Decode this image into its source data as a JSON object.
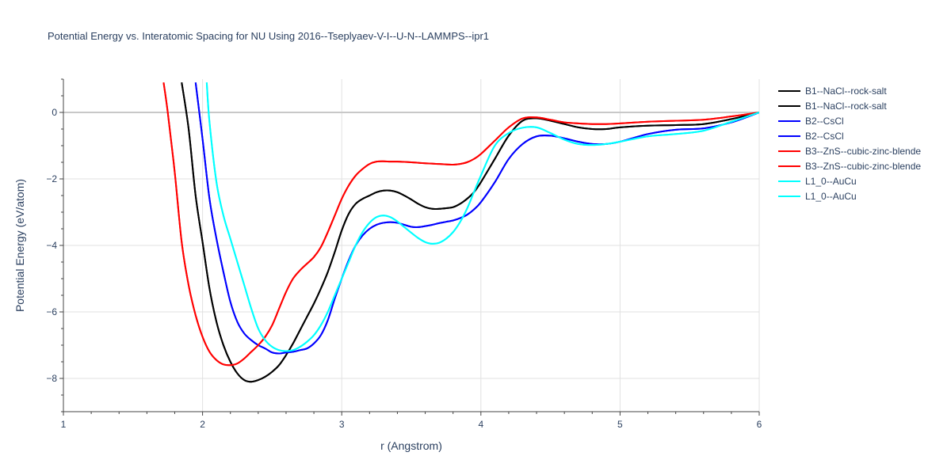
{
  "chart_data": {
    "type": "line",
    "title": "Potential Energy vs. Interatomic Spacing for NU Using 2016--Tseplyaev-V-I--U-N--LAMMPS--ipr1",
    "xlabel": "r (Angstrom)",
    "ylabel": "Potential Energy (eV/atom)",
    "xlim": [
      1,
      6
    ],
    "ylim": [
      -9,
      1
    ],
    "xticks": [
      1,
      2,
      3,
      4,
      5,
      6
    ],
    "yticks": [
      0,
      -2,
      -4,
      -6,
      -8
    ],
    "grid": true,
    "legend_position": "right",
    "series": [
      {
        "name": "B1--NaCl--rock-salt",
        "color": "#000000",
        "x": [
          1.85,
          1.9,
          1.95,
          2.0,
          2.05,
          2.1,
          2.15,
          2.2,
          2.25,
          2.3,
          2.35,
          2.4,
          2.45,
          2.5,
          2.55,
          2.6,
          2.65,
          2.7,
          2.75,
          2.8,
          2.85,
          2.9,
          2.95,
          3.0,
          3.05,
          3.1,
          3.15,
          3.2,
          3.25,
          3.3,
          3.35,
          3.4,
          3.45,
          3.5,
          3.55,
          3.6,
          3.65,
          3.7,
          3.75,
          3.8,
          3.85,
          3.9,
          3.95,
          4.0,
          4.1,
          4.2,
          4.3,
          4.4,
          4.5,
          4.6,
          4.7,
          4.8,
          4.9,
          5.0,
          5.2,
          5.4,
          5.6,
          5.8,
          6.0
        ],
        "values": [
          0.9,
          -0.5,
          -2.5,
          -3.9,
          -5.3,
          -6.3,
          -7.0,
          -7.5,
          -7.85,
          -8.05,
          -8.1,
          -8.05,
          -7.95,
          -7.8,
          -7.6,
          -7.3,
          -6.95,
          -6.55,
          -6.15,
          -5.75,
          -5.3,
          -4.8,
          -4.2,
          -3.55,
          -3.05,
          -2.75,
          -2.6,
          -2.5,
          -2.4,
          -2.35,
          -2.35,
          -2.4,
          -2.5,
          -2.62,
          -2.75,
          -2.85,
          -2.9,
          -2.9,
          -2.88,
          -2.85,
          -2.75,
          -2.6,
          -2.4,
          -2.1,
          -1.4,
          -0.7,
          -0.25,
          -0.18,
          -0.25,
          -0.35,
          -0.45,
          -0.5,
          -0.5,
          -0.45,
          -0.4,
          -0.38,
          -0.35,
          -0.2,
          0.0
        ]
      },
      {
        "name": "B1--NaCl--rock-salt",
        "color": "#000000",
        "x": [
          1.85,
          1.9,
          1.95,
          2.0,
          2.05,
          2.1,
          2.15,
          2.2,
          2.25,
          2.3,
          2.35,
          2.4,
          2.45,
          2.5,
          2.55,
          2.6,
          2.65,
          2.7,
          2.75,
          2.8,
          2.85,
          2.9,
          2.95,
          3.0,
          3.05,
          3.1,
          3.15,
          3.2,
          3.25,
          3.3,
          3.35,
          3.4,
          3.45,
          3.5,
          3.55,
          3.6,
          3.65,
          3.7,
          3.75,
          3.8,
          3.85,
          3.9,
          3.95,
          4.0,
          4.1,
          4.2,
          4.3,
          4.4,
          4.5,
          4.6,
          4.7,
          4.8,
          4.9,
          5.0,
          5.2,
          5.4,
          5.6,
          5.8,
          6.0
        ],
        "values": [
          0.9,
          -0.5,
          -2.5,
          -3.9,
          -5.3,
          -6.3,
          -7.0,
          -7.5,
          -7.85,
          -8.05,
          -8.1,
          -8.05,
          -7.95,
          -7.8,
          -7.6,
          -7.3,
          -6.95,
          -6.55,
          -6.15,
          -5.75,
          -5.3,
          -4.8,
          -4.2,
          -3.55,
          -3.05,
          -2.75,
          -2.6,
          -2.5,
          -2.4,
          -2.35,
          -2.35,
          -2.4,
          -2.5,
          -2.62,
          -2.75,
          -2.85,
          -2.9,
          -2.9,
          -2.88,
          -2.85,
          -2.75,
          -2.6,
          -2.4,
          -2.1,
          -1.4,
          -0.7,
          -0.25,
          -0.18,
          -0.25,
          -0.35,
          -0.45,
          -0.5,
          -0.5,
          -0.45,
          -0.4,
          -0.38,
          -0.35,
          -0.2,
          0.0
        ]
      },
      {
        "name": "B2--CsCl",
        "color": "#0000ff",
        "x": [
          1.95,
          2.0,
          2.05,
          2.1,
          2.15,
          2.2,
          2.25,
          2.3,
          2.35,
          2.4,
          2.45,
          2.5,
          2.55,
          2.6,
          2.65,
          2.7,
          2.75,
          2.8,
          2.85,
          2.9,
          2.95,
          3.0,
          3.05,
          3.1,
          3.15,
          3.2,
          3.25,
          3.3,
          3.35,
          3.4,
          3.45,
          3.5,
          3.55,
          3.6,
          3.65,
          3.7,
          3.75,
          3.8,
          3.85,
          3.9,
          3.95,
          4.0,
          4.1,
          4.2,
          4.3,
          4.4,
          4.5,
          4.6,
          4.7,
          4.8,
          4.9,
          5.0,
          5.2,
          5.4,
          5.6,
          5.8,
          6.0
        ],
        "values": [
          0.9,
          -0.8,
          -2.6,
          -3.8,
          -4.8,
          -5.7,
          -6.3,
          -6.65,
          -6.85,
          -7.0,
          -7.1,
          -7.22,
          -7.25,
          -7.22,
          -7.2,
          -7.15,
          -7.1,
          -6.95,
          -6.7,
          -6.25,
          -5.6,
          -5.0,
          -4.45,
          -4.0,
          -3.7,
          -3.5,
          -3.38,
          -3.32,
          -3.3,
          -3.32,
          -3.38,
          -3.44,
          -3.45,
          -3.42,
          -3.38,
          -3.33,
          -3.29,
          -3.25,
          -3.18,
          -3.08,
          -2.92,
          -2.7,
          -2.1,
          -1.4,
          -0.95,
          -0.72,
          -0.7,
          -0.78,
          -0.88,
          -0.95,
          -0.95,
          -0.88,
          -0.65,
          -0.52,
          -0.48,
          -0.3,
          0.0
        ]
      },
      {
        "name": "B2--CsCl",
        "color": "#0000ff",
        "x": [
          1.95,
          2.0,
          2.05,
          2.1,
          2.15,
          2.2,
          2.25,
          2.3,
          2.35,
          2.4,
          2.45,
          2.5,
          2.55,
          2.6,
          2.65,
          2.7,
          2.75,
          2.8,
          2.85,
          2.9,
          2.95,
          3.0,
          3.05,
          3.1,
          3.15,
          3.2,
          3.25,
          3.3,
          3.35,
          3.4,
          3.45,
          3.5,
          3.55,
          3.6,
          3.65,
          3.7,
          3.75,
          3.8,
          3.85,
          3.9,
          3.95,
          4.0,
          4.1,
          4.2,
          4.3,
          4.4,
          4.5,
          4.6,
          4.7,
          4.8,
          4.9,
          5.0,
          5.2,
          5.4,
          5.6,
          5.8,
          6.0
        ],
        "values": [
          0.9,
          -0.8,
          -2.6,
          -3.8,
          -4.8,
          -5.7,
          -6.3,
          -6.65,
          -6.85,
          -7.0,
          -7.1,
          -7.22,
          -7.25,
          -7.22,
          -7.2,
          -7.15,
          -7.1,
          -6.95,
          -6.7,
          -6.25,
          -5.6,
          -5.0,
          -4.45,
          -4.0,
          -3.7,
          -3.5,
          -3.38,
          -3.32,
          -3.3,
          -3.32,
          -3.38,
          -3.44,
          -3.45,
          -3.42,
          -3.38,
          -3.33,
          -3.29,
          -3.25,
          -3.18,
          -3.08,
          -2.92,
          -2.7,
          -2.1,
          -1.4,
          -0.95,
          -0.72,
          -0.7,
          -0.78,
          -0.88,
          -0.95,
          -0.95,
          -0.88,
          -0.65,
          -0.52,
          -0.48,
          -0.3,
          0.0
        ]
      },
      {
        "name": "B3--ZnS--cubic-zinc-blende",
        "color": "#ff0000",
        "x": [
          1.72,
          1.75,
          1.8,
          1.85,
          1.9,
          1.95,
          2.0,
          2.05,
          2.1,
          2.15,
          2.2,
          2.25,
          2.3,
          2.35,
          2.4,
          2.45,
          2.5,
          2.55,
          2.6,
          2.65,
          2.7,
          2.75,
          2.8,
          2.85,
          2.9,
          2.95,
          3.0,
          3.05,
          3.1,
          3.15,
          3.2,
          3.25,
          3.3,
          3.35,
          3.4,
          3.5,
          3.6,
          3.7,
          3.8,
          3.85,
          3.9,
          3.95,
          4.0,
          4.1,
          4.2,
          4.3,
          4.4,
          4.5,
          4.6,
          4.7,
          4.8,
          4.9,
          5.0,
          5.2,
          5.4,
          5.6,
          5.8,
          6.0
        ],
        "values": [
          0.9,
          0.0,
          -1.8,
          -3.9,
          -5.2,
          -6.1,
          -6.75,
          -7.2,
          -7.45,
          -7.58,
          -7.6,
          -7.55,
          -7.4,
          -7.2,
          -7.0,
          -6.75,
          -6.4,
          -5.9,
          -5.4,
          -5.0,
          -4.75,
          -4.55,
          -4.35,
          -4.05,
          -3.6,
          -3.1,
          -2.6,
          -2.2,
          -1.9,
          -1.7,
          -1.55,
          -1.48,
          -1.47,
          -1.48,
          -1.48,
          -1.5,
          -1.53,
          -1.55,
          -1.57,
          -1.55,
          -1.5,
          -1.4,
          -1.25,
          -0.85,
          -0.45,
          -0.18,
          -0.15,
          -0.22,
          -0.3,
          -0.33,
          -0.35,
          -0.35,
          -0.33,
          -0.28,
          -0.25,
          -0.22,
          -0.12,
          0.0
        ]
      },
      {
        "name": "B3--ZnS--cubic-zinc-blende",
        "color": "#ff0000",
        "x": [
          1.72,
          1.75,
          1.8,
          1.85,
          1.9,
          1.95,
          2.0,
          2.05,
          2.1,
          2.15,
          2.2,
          2.25,
          2.3,
          2.35,
          2.4,
          2.45,
          2.5,
          2.55,
          2.6,
          2.65,
          2.7,
          2.75,
          2.8,
          2.85,
          2.9,
          2.95,
          3.0,
          3.05,
          3.1,
          3.15,
          3.2,
          3.25,
          3.3,
          3.35,
          3.4,
          3.5,
          3.6,
          3.7,
          3.8,
          3.85,
          3.9,
          3.95,
          4.0,
          4.1,
          4.2,
          4.3,
          4.4,
          4.5,
          4.6,
          4.7,
          4.8,
          4.9,
          5.0,
          5.2,
          5.4,
          5.6,
          5.8,
          6.0
        ],
        "values": [
          0.9,
          0.0,
          -1.8,
          -3.9,
          -5.2,
          -6.1,
          -6.75,
          -7.2,
          -7.45,
          -7.58,
          -7.6,
          -7.55,
          -7.4,
          -7.2,
          -7.0,
          -6.75,
          -6.4,
          -5.9,
          -5.4,
          -5.0,
          -4.75,
          -4.55,
          -4.35,
          -4.05,
          -3.6,
          -3.1,
          -2.6,
          -2.2,
          -1.9,
          -1.7,
          -1.55,
          -1.48,
          -1.47,
          -1.48,
          -1.48,
          -1.5,
          -1.53,
          -1.55,
          -1.57,
          -1.55,
          -1.5,
          -1.4,
          -1.25,
          -0.85,
          -0.45,
          -0.18,
          -0.15,
          -0.22,
          -0.3,
          -0.33,
          -0.35,
          -0.35,
          -0.33,
          -0.28,
          -0.25,
          -0.22,
          -0.12,
          0.0
        ]
      },
      {
        "name": "L1_0--AuCu",
        "color": "#00ffff",
        "x": [
          2.03,
          2.05,
          2.1,
          2.15,
          2.2,
          2.25,
          2.3,
          2.35,
          2.4,
          2.45,
          2.5,
          2.55,
          2.6,
          2.65,
          2.7,
          2.75,
          2.8,
          2.85,
          2.9,
          2.95,
          3.0,
          3.05,
          3.1,
          3.15,
          3.2,
          3.25,
          3.3,
          3.35,
          3.4,
          3.45,
          3.5,
          3.55,
          3.6,
          3.65,
          3.7,
          3.75,
          3.8,
          3.85,
          3.9,
          3.95,
          4.0,
          4.1,
          4.2,
          4.3,
          4.4,
          4.5,
          4.6,
          4.7,
          4.8,
          4.9,
          5.0,
          5.2,
          5.4,
          5.6,
          5.8,
          6.0
        ],
        "values": [
          0.9,
          -0.3,
          -2.1,
          -3.1,
          -3.8,
          -4.5,
          -5.2,
          -5.9,
          -6.5,
          -6.85,
          -7.05,
          -7.15,
          -7.18,
          -7.15,
          -7.05,
          -6.9,
          -6.7,
          -6.4,
          -6.0,
          -5.5,
          -5.0,
          -4.5,
          -4.0,
          -3.6,
          -3.32,
          -3.15,
          -3.1,
          -3.15,
          -3.28,
          -3.45,
          -3.62,
          -3.78,
          -3.9,
          -3.95,
          -3.92,
          -3.8,
          -3.6,
          -3.3,
          -2.9,
          -2.4,
          -1.9,
          -1.0,
          -0.62,
          -0.46,
          -0.45,
          -0.62,
          -0.82,
          -0.95,
          -0.98,
          -0.95,
          -0.88,
          -0.72,
          -0.65,
          -0.55,
          -0.28,
          0.0
        ]
      },
      {
        "name": "L1_0--AuCu",
        "color": "#00ffff",
        "x": [
          2.03,
          2.05,
          2.1,
          2.15,
          2.2,
          2.25,
          2.3,
          2.35,
          2.4,
          2.45,
          2.5,
          2.55,
          2.6,
          2.65,
          2.7,
          2.75,
          2.8,
          2.85,
          2.9,
          2.95,
          3.0,
          3.05,
          3.1,
          3.15,
          3.2,
          3.25,
          3.3,
          3.35,
          3.4,
          3.45,
          3.5,
          3.55,
          3.6,
          3.65,
          3.7,
          3.75,
          3.8,
          3.85,
          3.9,
          3.95,
          4.0,
          4.1,
          4.2,
          4.3,
          4.4,
          4.5,
          4.6,
          4.7,
          4.8,
          4.9,
          5.0,
          5.2,
          5.4,
          5.6,
          5.8,
          6.0
        ],
        "values": [
          0.9,
          -0.3,
          -2.1,
          -3.1,
          -3.8,
          -4.5,
          -5.2,
          -5.9,
          -6.5,
          -6.85,
          -7.05,
          -7.15,
          -7.18,
          -7.15,
          -7.05,
          -6.9,
          -6.7,
          -6.4,
          -6.0,
          -5.5,
          -5.0,
          -4.5,
          -4.0,
          -3.6,
          -3.32,
          -3.15,
          -3.1,
          -3.15,
          -3.28,
          -3.45,
          -3.62,
          -3.78,
          -3.9,
          -3.95,
          -3.92,
          -3.8,
          -3.6,
          -3.3,
          -2.9,
          -2.4,
          -1.9,
          -1.0,
          -0.62,
          -0.46,
          -0.45,
          -0.62,
          -0.82,
          -0.95,
          -0.98,
          -0.95,
          -0.88,
          -0.72,
          -0.65,
          -0.55,
          -0.28,
          0.0
        ]
      }
    ]
  }
}
